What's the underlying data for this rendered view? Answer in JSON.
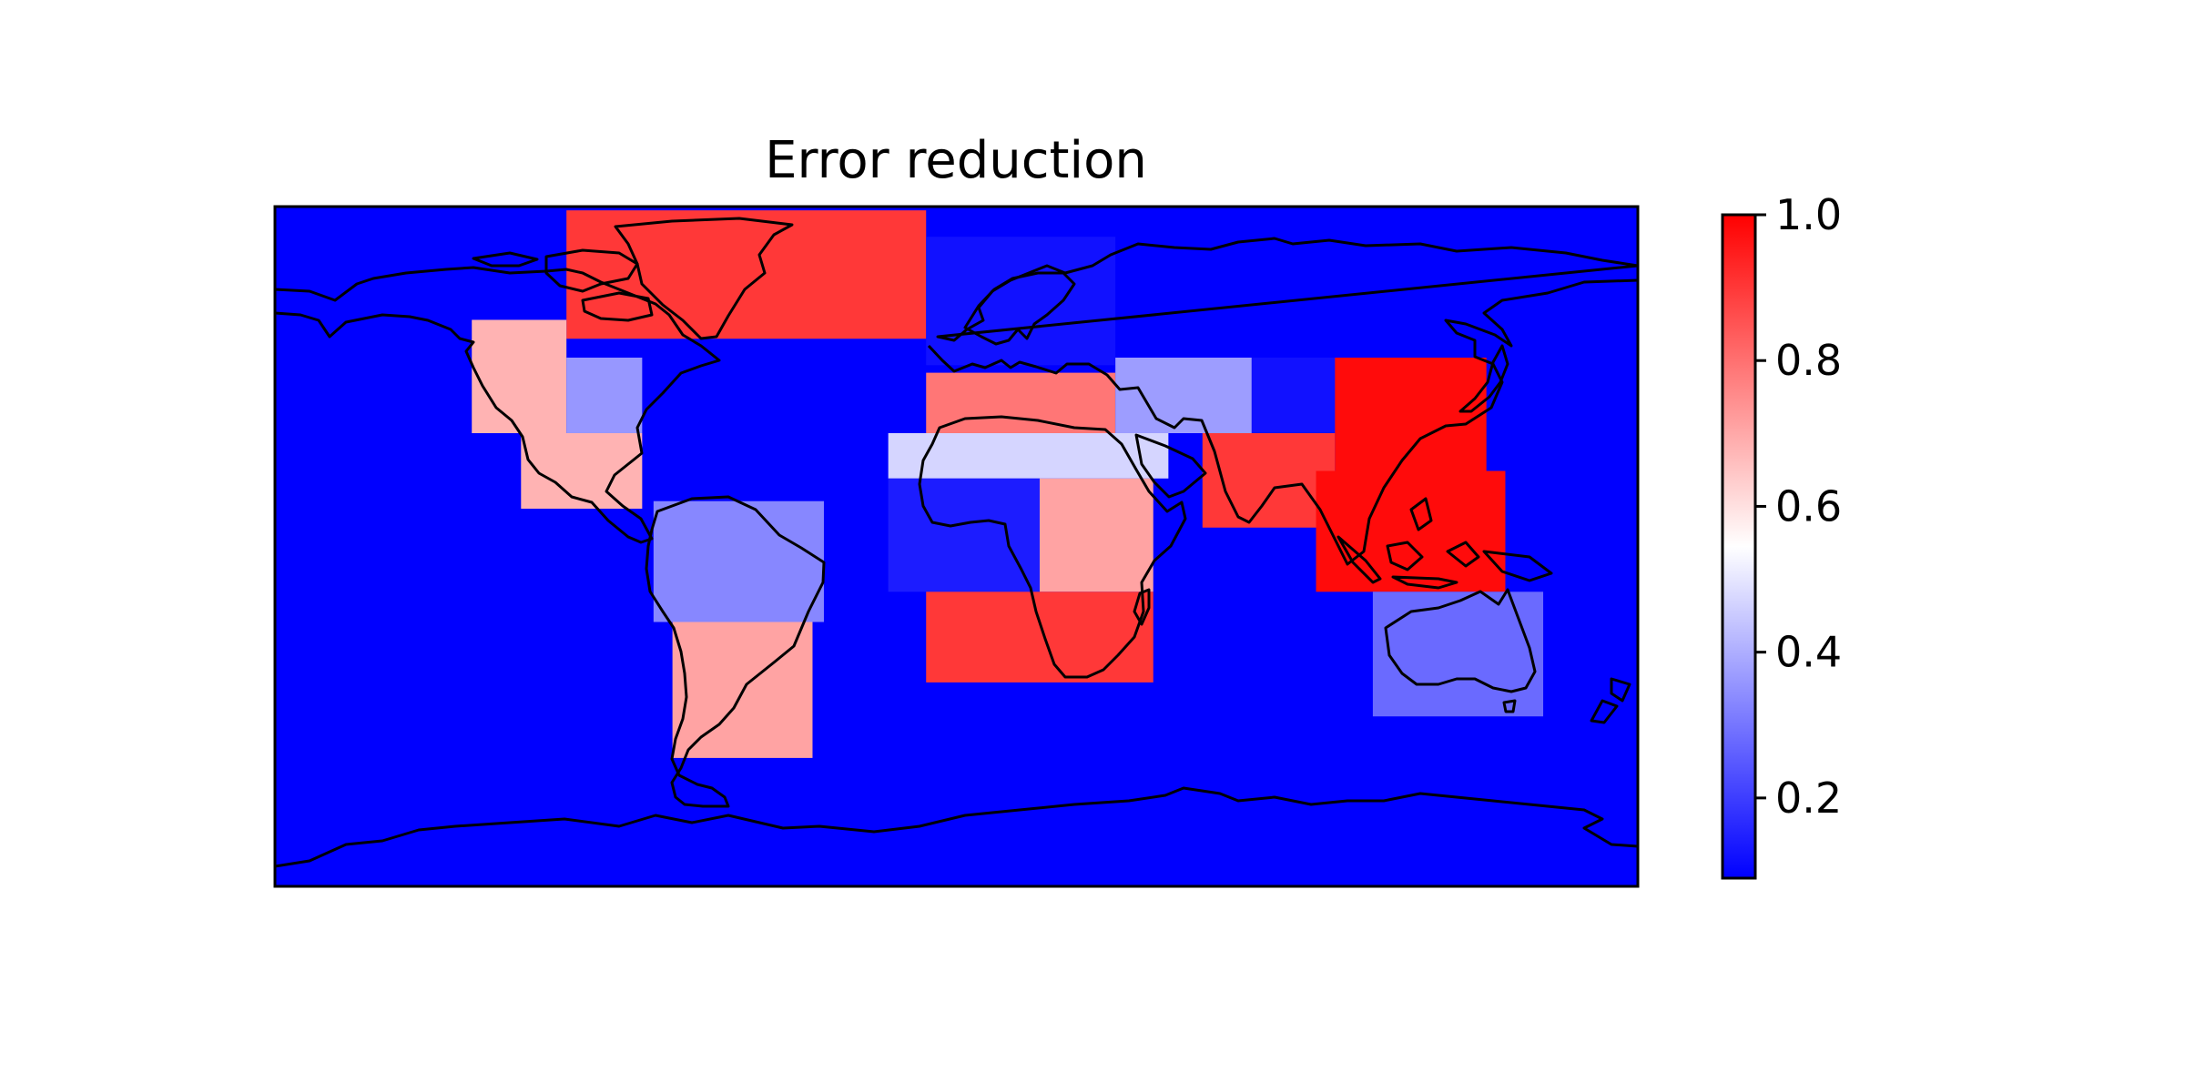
{
  "chart_data": {
    "type": "heatmap",
    "title": "Error reduction",
    "xlabel": "",
    "ylabel": "",
    "projection": "plate-carree",
    "x_range": [
      -180,
      180
    ],
    "y_range": [
      -90,
      90
    ],
    "grid": false,
    "colormap": "bwr",
    "background_value": 0.09,
    "colorbar": {
      "range": [
        0.09,
        1.0
      ],
      "ticks": [
        0.2,
        0.4,
        0.6,
        0.8,
        1.0
      ],
      "tick_labels": [
        "0.2",
        "0.4",
        "0.6",
        "0.8",
        "1.0"
      ],
      "placement": "right"
    },
    "regions": [
      {
        "lon": [
          -103,
          -8
        ],
        "lat": [
          55,
          89
        ],
        "value": 0.9
      },
      {
        "lon": [
          -8,
          42
        ],
        "lat": [
          48,
          82
        ],
        "value": 0.12
      },
      {
        "lon": [
          -128,
          -103
        ],
        "lat": [
          30,
          60
        ],
        "value": 0.68
      },
      {
        "lon": [
          -103,
          -83
        ],
        "lat": [
          30,
          50
        ],
        "value": 0.36
      },
      {
        "lon": [
          -115,
          -83
        ],
        "lat": [
          10,
          30
        ],
        "value": 0.68
      },
      {
        "lon": [
          -80,
          -35
        ],
        "lat": [
          -20,
          12
        ],
        "value": 0.33
      },
      {
        "lon": [
          -75,
          -38
        ],
        "lat": [
          -56,
          -20
        ],
        "value": 0.71
      },
      {
        "lon": [
          -8,
          42
        ],
        "lat": [
          30,
          46
        ],
        "value": 0.79
      },
      {
        "lon": [
          42,
          78
        ],
        "lat": [
          30,
          50
        ],
        "value": 0.37
      },
      {
        "lon": [
          78,
          102
        ],
        "lat": [
          30,
          50
        ],
        "value": 0.12
      },
      {
        "lon": [
          -18,
          56
        ],
        "lat": [
          18,
          30
        ],
        "value": 0.47
      },
      {
        "lon": [
          -18,
          22
        ],
        "lat": [
          -12,
          18
        ],
        "value": 0.14
      },
      {
        "lon": [
          22,
          52
        ],
        "lat": [
          -12,
          18
        ],
        "value": 0.71
      },
      {
        "lon": [
          -8,
          52
        ],
        "lat": [
          -36,
          -12
        ],
        "value": 0.9
      },
      {
        "lon": [
          65,
          100
        ],
        "lat": [
          5,
          30
        ],
        "value": 0.9
      },
      {
        "lon": [
          95,
          145
        ],
        "lat": [
          -12,
          20
        ],
        "value": 0.98
      },
      {
        "lon": [
          100,
          140
        ],
        "lat": [
          20,
          50
        ],
        "value": 0.98
      },
      {
        "lon": [
          110,
          155
        ],
        "lat": [
          -45,
          -12
        ],
        "value": 0.28
      }
    ]
  }
}
